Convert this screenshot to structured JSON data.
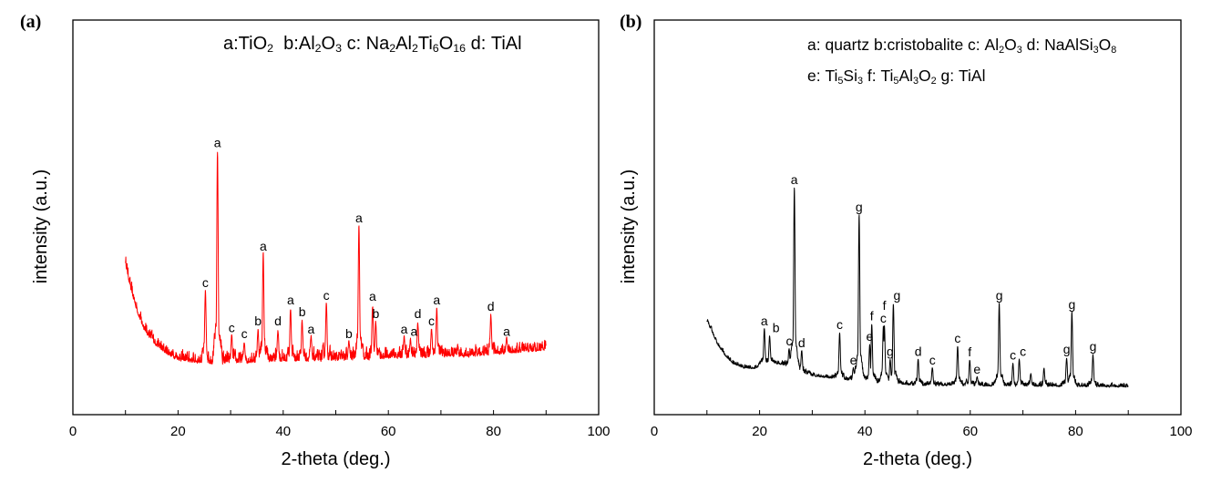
{
  "chart_data": [
    {
      "type": "line",
      "panel_label": "(a)",
      "xlabel": "2-theta (deg.)",
      "ylabel": "intensity (a.u.)",
      "xlim": [
        0,
        100
      ],
      "ylim": [
        0,
        100
      ],
      "xticks": [
        "0",
        "20",
        "40",
        "60",
        "80",
        "100"
      ],
      "grid": false,
      "line_color": "#ff0000",
      "legend": [
        [
          {
            "t": "a:TiO"
          },
          {
            "t": "2",
            "sub": true
          },
          {
            "t": "  b:Al"
          },
          {
            "t": "2",
            "sub": true
          },
          {
            "t": "O"
          },
          {
            "t": "3",
            "sub": true
          },
          {
            "t": " c: Na"
          },
          {
            "t": "2",
            "sub": true
          },
          {
            "t": "Al"
          },
          {
            "t": "2",
            "sub": true
          },
          {
            "t": "Ti"
          },
          {
            "t": "6",
            "sub": true
          },
          {
            "t": "O"
          },
          {
            "t": "16",
            "sub": true
          },
          {
            "t": " d: TiAl"
          }
        ]
      ],
      "background": [
        [
          10,
          38.8
        ],
        [
          11,
          32
        ],
        [
          12,
          27.5
        ],
        [
          13,
          23.5
        ],
        [
          14,
          21
        ],
        [
          15.5,
          18.5
        ],
        [
          17,
          16.5
        ],
        [
          19,
          15
        ],
        [
          21,
          14
        ],
        [
          25,
          13.5
        ],
        [
          30,
          13.5
        ],
        [
          40,
          14
        ],
        [
          50,
          14.2
        ],
        [
          60,
          14.8
        ],
        [
          70,
          15.2
        ],
        [
          75,
          15.2
        ],
        [
          80,
          15.8
        ],
        [
          85,
          16.2
        ],
        [
          90,
          16.9
        ]
      ],
      "peaks": [
        {
          "x": 25.2,
          "y": 31.4,
          "label": "c"
        },
        {
          "x": 27.5,
          "y": 66.9,
          "label": "a"
        },
        {
          "x": 30.2,
          "y": 20.0,
          "label": "c"
        },
        {
          "x": 32.6,
          "y": 18.5,
          "label": "c"
        },
        {
          "x": 35.2,
          "y": 21.7,
          "label": "b"
        },
        {
          "x": 36.2,
          "y": 40.6,
          "label": "a"
        },
        {
          "x": 39.0,
          "y": 21.7,
          "label": "d"
        },
        {
          "x": 41.4,
          "y": 27.0,
          "label": "a"
        },
        {
          "x": 43.6,
          "y": 24.0,
          "label": "b"
        },
        {
          "x": 45.3,
          "y": 19.6,
          "label": "a"
        },
        {
          "x": 48.2,
          "y": 28.2,
          "label": "c"
        },
        {
          "x": 52.5,
          "y": 18.5,
          "label": "b"
        },
        {
          "x": 54.4,
          "y": 47.8,
          "label": "a"
        },
        {
          "x": 57.0,
          "y": 27.9,
          "label": "a"
        },
        {
          "x": 57.6,
          "y": 23.6,
          "label": "b"
        },
        {
          "x": 63.0,
          "y": 19.6,
          "label": "a"
        },
        {
          "x": 64.2,
          "y": 19.0,
          "label": "a"
        },
        {
          "x": 65.6,
          "y": 23.6,
          "label": "d"
        },
        {
          "x": 68.2,
          "y": 21.7,
          "label": "c"
        },
        {
          "x": 69.2,
          "y": 27.0,
          "label": "a"
        },
        {
          "x": 79.5,
          "y": 25.4,
          "label": "d"
        },
        {
          "x": 82.5,
          "y": 19.0,
          "label": "a"
        }
      ]
    },
    {
      "type": "line",
      "panel_label": "(b)",
      "xlabel": "2-theta (deg.)",
      "ylabel": "intensity (a.u.)",
      "xlim": [
        0,
        100
      ],
      "ylim": [
        0,
        100
      ],
      "xticks": [
        "0",
        "20",
        "40",
        "60",
        "80",
        "100"
      ],
      "grid": false,
      "line_color": "#000000",
      "legend": [
        [
          {
            "t": "a: quartz b:cristobalite c: Al"
          },
          {
            "t": "2",
            "sub": true
          },
          {
            "t": "O"
          },
          {
            "t": "3",
            "sub": true
          },
          {
            "t": " d: NaAlSi"
          },
          {
            "t": "3",
            "sub": true
          },
          {
            "t": "O"
          },
          {
            "t": "8",
            "sub": true
          }
        ],
        [
          {
            "t": "e: Ti"
          },
          {
            "t": "5",
            "sub": true
          },
          {
            "t": "Si"
          },
          {
            "t": "3",
            "sub": true
          },
          {
            "t": " f: Ti"
          },
          {
            "t": "5",
            "sub": true
          },
          {
            "t": "Al"
          },
          {
            "t": "3",
            "sub": true
          },
          {
            "t": "O"
          },
          {
            "t": "2",
            "sub": true
          },
          {
            "t": " g: TiAl"
          }
        ]
      ],
      "background": [
        [
          10,
          24
        ],
        [
          11,
          21
        ],
        [
          12,
          18
        ],
        [
          13.5,
          15
        ],
        [
          15,
          13
        ],
        [
          17,
          12
        ],
        [
          19,
          11.8
        ],
        [
          21,
          12.8
        ],
        [
          23,
          13.2
        ],
        [
          25,
          12.6
        ],
        [
          28,
          10.8
        ],
        [
          30,
          10
        ],
        [
          35,
          9.2
        ],
        [
          40,
          8.5
        ],
        [
          45,
          8
        ],
        [
          50,
          7.6
        ],
        [
          60,
          7.5
        ],
        [
          70,
          7.4
        ],
        [
          80,
          7.3
        ],
        [
          90,
          7.2
        ]
      ],
      "peaks": [
        {
          "x": 20.9,
          "y": 21.7,
          "label": "a"
        },
        {
          "x": 21.9,
          "y": 20.0,
          "label": "b"
        },
        {
          "x": 25.6,
          "y": 16.6,
          "label": "c"
        },
        {
          "x": 26.6,
          "y": 57.5,
          "label": "a"
        },
        {
          "x": 28.0,
          "y": 16.2,
          "label": "d"
        },
        {
          "x": 35.2,
          "y": 20.8,
          "label": "c"
        },
        {
          "x": 37.8,
          "y": 11.8,
          "label": "e"
        },
        {
          "x": 38.9,
          "y": 50.6,
          "label": "g"
        },
        {
          "x": 40.9,
          "y": 17.8,
          "label": "e"
        },
        {
          "x": 41.3,
          "y": 23.0,
          "label": "f"
        },
        {
          "x": 43.5,
          "y": 22.4,
          "label": "c"
        },
        {
          "x": 43.7,
          "y": 22.4,
          "label": "f"
        },
        {
          "x": 44.8,
          "y": 14.0,
          "label": "g"
        },
        {
          "x": 45.4,
          "y": 28.2,
          "label": "g"
        },
        {
          "x": 50.1,
          "y": 14.0,
          "label": "d"
        },
        {
          "x": 52.8,
          "y": 11.8,
          "label": "c"
        },
        {
          "x": 57.6,
          "y": 17.3,
          "label": "c"
        },
        {
          "x": 59.9,
          "y": 13.9,
          "label": "f"
        },
        {
          "x": 61.3,
          "y": 9.5,
          "label": "e"
        },
        {
          "x": 65.5,
          "y": 28.2,
          "label": "g"
        },
        {
          "x": 68.1,
          "y": 13.0,
          "label": "c"
        },
        {
          "x": 69.3,
          "y": 14.0,
          "label": "c"
        },
        {
          "x": 71.5,
          "y": 10.5,
          "label": ""
        },
        {
          "x": 74.0,
          "y": 11.8,
          "label": ""
        },
        {
          "x": 78.3,
          "y": 14.5,
          "label": "g"
        },
        {
          "x": 79.3,
          "y": 25.9,
          "label": "g"
        },
        {
          "x": 83.3,
          "y": 15.2,
          "label": "g"
        }
      ]
    }
  ]
}
